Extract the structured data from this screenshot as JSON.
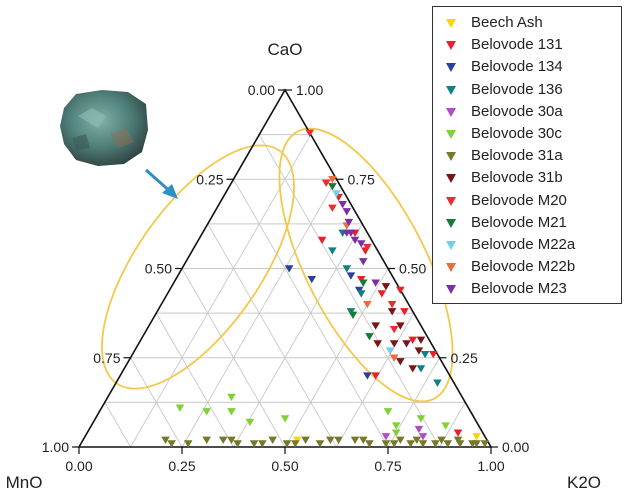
{
  "chart_data": {
    "type": "scatter",
    "subtype": "ternary",
    "apex_labels": {
      "top": "CaO",
      "left": "MnO",
      "right": "K2O"
    },
    "ticks": [
      "0.00",
      "0.25",
      "0.50",
      "0.75",
      "1.00"
    ],
    "grid": true,
    "legend_position": "top-right",
    "marker": "triangle-down",
    "series": [
      {
        "name": "Beech Ash",
        "color": "#ffd400",
        "points": [
          [
            0.52,
            0.02
          ],
          [
            0.95,
            0.03
          ]
        ]
      },
      {
        "name": "Belovode 131",
        "color": "#e8202a",
        "points": [
          [
            0.3,
            0.58
          ],
          [
            0.52,
            0.43
          ],
          [
            0.6,
            0.38
          ],
          [
            0.28,
            0.7
          ],
          [
            0.37,
            0.6
          ],
          [
            0.62,
            0.2
          ],
          [
            0.9,
            0.04
          ],
          [
            0.73,
            0.26
          ],
          [
            0.56,
            0.44
          ],
          [
            0.42,
            0.55
          ],
          [
            0.45,
            0.47
          ],
          [
            0.66,
            0.3
          ]
        ]
      },
      {
        "name": "Belovode 134",
        "color": "#2b3f9e",
        "points": [
          [
            0.6,
            0.2
          ],
          [
            0.33,
            0.47
          ],
          [
            0.26,
            0.5
          ],
          [
            0.46,
            0.44
          ],
          [
            0.42,
            0.48
          ]
        ]
      },
      {
        "name": "Belovode 136",
        "color": "#127f84",
        "points": [
          [
            0.34,
            0.6
          ],
          [
            0.34,
            0.55
          ],
          [
            0.47,
            0.43
          ],
          [
            0.78,
            0.18
          ],
          [
            0.71,
            0.26
          ],
          [
            0.4,
            0.5
          ],
          [
            0.47,
            0.38
          ],
          [
            0.72,
            0.22
          ]
        ]
      },
      {
        "name": "Belovode 30a",
        "color": "#b44bc6",
        "points": [
          [
            0.82,
            0.03
          ],
          [
            0.8,
            0.05
          ],
          [
            0.73,
            0.03
          ]
        ]
      },
      {
        "name": "Belovode 30c",
        "color": "#7fd135",
        "points": [
          [
            0.86,
            0.06
          ],
          [
            0.75,
            0.04
          ],
          [
            0.38,
            0.07
          ],
          [
            0.32,
            0.1
          ],
          [
            0.7,
            0.1
          ],
          [
            0.79,
            0.08
          ],
          [
            0.74,
            0.06
          ],
          [
            0.46,
            0.08
          ],
          [
            0.3,
            0.14
          ],
          [
            0.19,
            0.11
          ],
          [
            0.26,
            0.1
          ]
        ]
      },
      {
        "name": "Belovode 31a",
        "color": "#77782a",
        "points": [
          [
            0.98,
            0.01
          ],
          [
            0.95,
            0.01
          ],
          [
            0.92,
            0.01
          ],
          [
            0.89,
            0.01
          ],
          [
            0.86,
            0.01
          ],
          [
            0.83,
            0.01
          ],
          [
            0.8,
            0.01
          ],
          [
            0.77,
            0.02
          ],
          [
            0.74,
            0.01
          ],
          [
            0.7,
            0.01
          ],
          [
            0.66,
            0.02
          ],
          [
            0.62,
            0.02
          ],
          [
            0.58,
            0.01
          ],
          [
            0.54,
            0.02
          ],
          [
            0.5,
            0.01
          ],
          [
            0.46,
            0.02
          ],
          [
            0.42,
            0.01
          ],
          [
            0.38,
            0.01
          ],
          [
            0.34,
            0.02
          ],
          [
            0.3,
            0.02
          ],
          [
            0.26,
            0.01
          ],
          [
            0.22,
            0.01
          ],
          [
            0.2,
            0.02
          ],
          [
            0.96,
            0.01
          ],
          [
            0.91,
            0.02
          ],
          [
            0.87,
            0.02
          ],
          [
            0.81,
            0.02
          ],
          [
            0.76,
            0.01
          ],
          [
            0.68,
            0.02
          ],
          [
            0.6,
            0.02
          ],
          [
            0.52,
            0.01
          ],
          [
            0.44,
            0.01
          ],
          [
            0.36,
            0.02
          ]
        ]
      },
      {
        "name": "Belovode 31b",
        "color": "#7a1416",
        "points": [
          [
            0.68,
            0.3
          ],
          [
            0.62,
            0.29
          ],
          [
            0.66,
            0.24
          ],
          [
            0.57,
            0.38
          ],
          [
            0.58,
            0.29
          ],
          [
            0.7,
            0.22
          ],
          [
            0.55,
            0.34
          ],
          [
            0.61,
            0.34
          ],
          [
            0.69,
            0.27
          ],
          [
            0.65,
            0.29
          ],
          [
            0.52,
            0.45
          ]
        ]
      },
      {
        "name": "Belovode M20",
        "color": "#ee2a2e",
        "points": [
          [
            0.56,
            0.4
          ],
          [
            0.42,
            0.56
          ],
          [
            0.12,
            0.88
          ],
          [
            0.23,
            0.74
          ],
          [
            0.28,
            0.67
          ],
          [
            0.6,
            0.33
          ]
        ]
      },
      {
        "name": "Belovode M21",
        "color": "#147c35",
        "points": [
          [
            0.48,
            0.37
          ],
          [
            0.46,
            0.46
          ],
          [
            0.25,
            0.73
          ],
          [
            0.55,
            0.31
          ]
        ]
      },
      {
        "name": "Belovode M22a",
        "color": "#6fd0e8",
        "points": [
          [
            0.27,
            0.71
          ],
          [
            0.62,
            0.27
          ]
        ]
      },
      {
        "name": "Belovode M22b",
        "color": "#f06a3c",
        "points": [
          [
            0.64,
            0.25
          ],
          [
            0.5,
            0.4
          ],
          [
            0.24,
            0.75
          ],
          [
            0.34,
            0.62
          ]
        ]
      },
      {
        "name": "Belovode M23",
        "color": "#7c2ea2",
        "points": [
          [
            0.34,
            0.63
          ],
          [
            0.38,
            0.58
          ],
          [
            0.36,
            0.6
          ],
          [
            0.4,
            0.57
          ],
          [
            0.35,
            0.6
          ],
          [
            0.3,
            0.68
          ],
          [
            0.43,
            0.52
          ],
          [
            0.49,
            0.46
          ],
          [
            0.32,
            0.66
          ]
        ]
      }
    ]
  }
}
